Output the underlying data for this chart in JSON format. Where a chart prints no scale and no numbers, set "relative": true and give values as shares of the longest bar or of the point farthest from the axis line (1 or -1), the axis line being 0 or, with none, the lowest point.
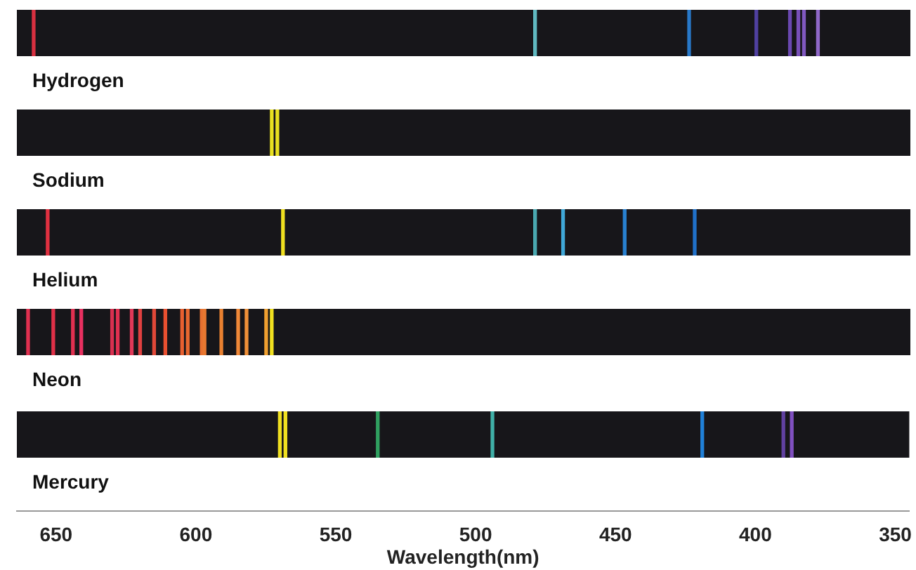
{
  "chart_data": [
    {
      "type": "bar",
      "title": "Hydrogen",
      "relative": true,
      "tick_labels": false,
      "xlim": [
        664,
        345
      ],
      "x": [
        658,
        479,
        424,
        400,
        388,
        385,
        383,
        378
      ],
      "values": [
        1,
        1,
        1,
        1,
        1,
        1,
        1,
        1
      ],
      "colors": [
        "#d83040",
        "#60b8c0",
        "#2878c8",
        "#5040a0",
        "#6a48b0",
        "#7850b8",
        "#8058c0",
        "#9068c8"
      ]
    },
    {
      "type": "bar",
      "title": "Sodium",
      "relative": true,
      "tick_labels": false,
      "xlim": [
        664,
        345
      ],
      "x": [
        573,
        571
      ],
      "values": [
        1,
        1
      ],
      "colors": [
        "#e8e020",
        "#e8e020"
      ]
    },
    {
      "type": "bar",
      "title": "Helium",
      "relative": true,
      "tick_labels": false,
      "xlim": [
        664,
        345
      ],
      "x": [
        653,
        569,
        479,
        469,
        447,
        422
      ],
      "values": [
        1,
        1,
        1,
        1,
        1,
        1
      ],
      "colors": [
        "#e03040",
        "#f0e020",
        "#4aa8b0",
        "#40a8d8",
        "#2880d0",
        "#2070c8"
      ]
    },
    {
      "type": "bar",
      "title": "Neon",
      "relative": true,
      "tick_labels": false,
      "xlim": [
        664,
        345
      ],
      "x": [
        660,
        651,
        644,
        641,
        630,
        628,
        623,
        620,
        615,
        611,
        605,
        603,
        598,
        597,
        591,
        585,
        582,
        575,
        573
      ],
      "values": [
        1,
        1,
        1,
        1,
        1,
        1,
        1,
        1,
        1,
        1,
        1,
        1,
        1,
        1,
        1,
        1,
        1,
        1,
        1
      ],
      "colors": [
        "#e03050",
        "#e03048",
        "#e03050",
        "#e83060",
        "#d83050",
        "#e03050",
        "#e03858",
        "#e04040",
        "#e04838",
        "#e85030",
        "#e86030",
        "#e86830",
        "#e87030",
        "#e87830",
        "#e88030",
        "#f08838",
        "#f09038",
        "#f0a030",
        "#f0e020"
      ]
    },
    {
      "type": "bar",
      "title": "Mercury",
      "relative": true,
      "tick_labels": "x",
      "xlim": [
        664,
        345
      ],
      "xticks": [
        650,
        600,
        550,
        500,
        450,
        400,
        350
      ],
      "xlabel": "Wavelength(nm)",
      "x": [
        570,
        568,
        535,
        494,
        419,
        390,
        387
      ],
      "values": [
        1,
        1,
        1,
        1,
        1,
        1,
        1
      ],
      "colors": [
        "#f0e020",
        "#f0e020",
        "#30a060",
        "#40b0a8",
        "#2080d8",
        "#6040a0",
        "#8050c0"
      ]
    }
  ]
}
